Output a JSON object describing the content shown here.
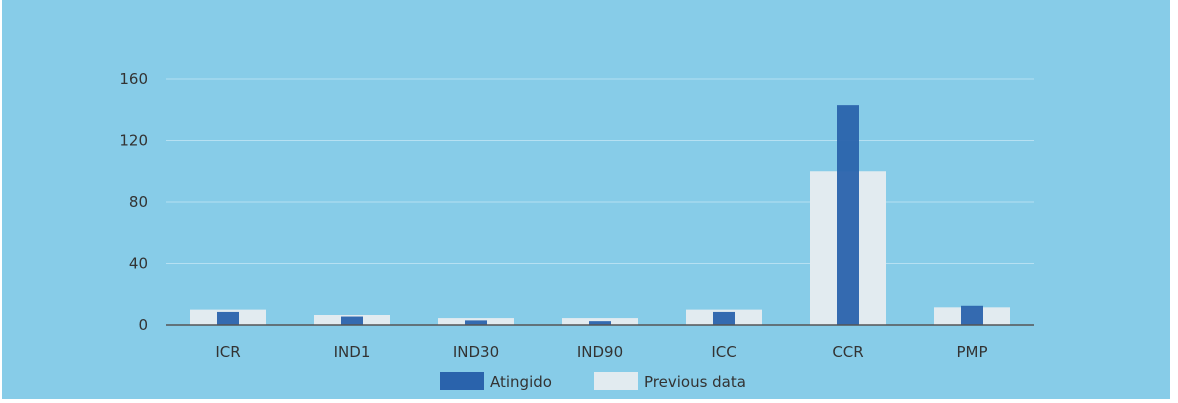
{
  "chart_data": {
    "type": "bar",
    "categories": [
      "ICR",
      "IND1",
      "IND30",
      "IND90",
      "ICC",
      "CCR",
      "PMP"
    ],
    "series": [
      {
        "name": "Atingido",
        "values": [
          8.5,
          5.5,
          3,
          2.5,
          8.5,
          143,
          12.5
        ],
        "color": "#2a63ac"
      },
      {
        "name": "Previous data",
        "values": [
          10,
          6.5,
          4.5,
          4.5,
          10,
          100,
          11.5
        ],
        "color": "#e2ebf0"
      }
    ],
    "yticks": [
      0,
      40,
      80,
      120,
      160
    ],
    "ylim": [
      0,
      160
    ],
    "grid": true,
    "legend_position": "bottom-center",
    "colors": {
      "background": "#87cce8",
      "gridline": "#b6e0f2",
      "axis": "#555555",
      "text": "#333333"
    }
  }
}
